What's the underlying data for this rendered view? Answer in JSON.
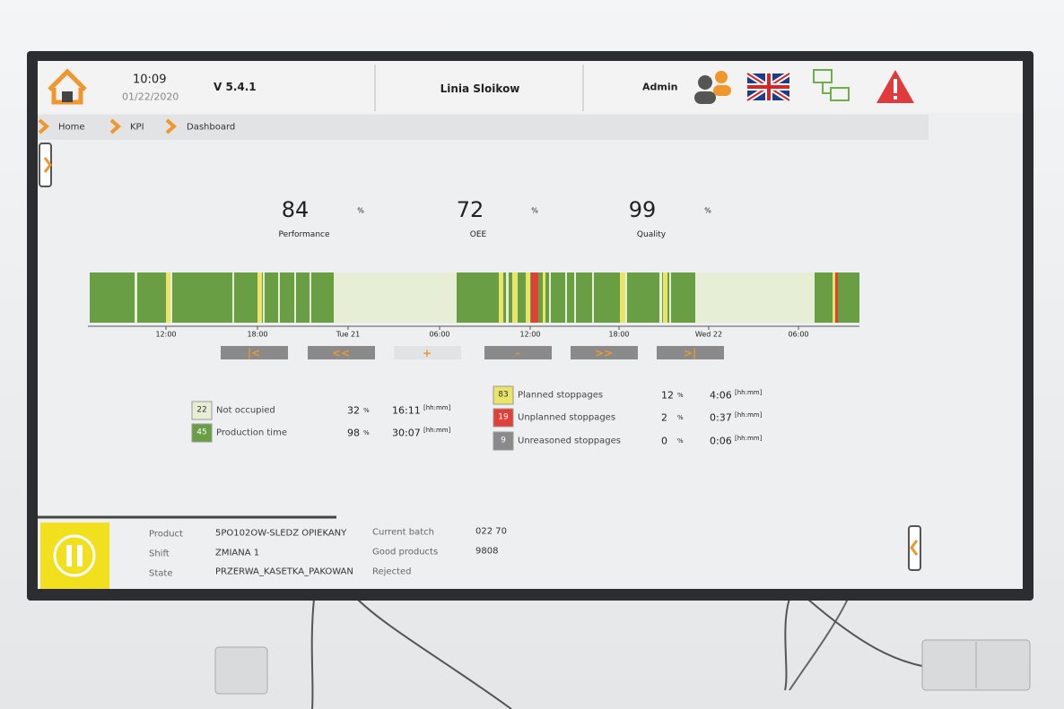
{
  "header": {
    "time": "10:09",
    "date": "01/22/2020",
    "version": "V 5.4.1",
    "line": "Linia Sloikow",
    "user": "Admin"
  },
  "breadcrumbs": [
    "Home",
    "KPI",
    "Dashboard"
  ],
  "kpis": [
    {
      "value": "84",
      "unit": "%",
      "label": "Performance"
    },
    {
      "value": "72",
      "unit": "%",
      "label": "OEE"
    },
    {
      "value": "99",
      "unit": "%",
      "label": "Quality"
    }
  ],
  "timeline_labels": [
    "12:00",
    "18:00",
    "Tue 21",
    "06:00",
    "12:00",
    "18:00",
    "Wed 22",
    "06:00"
  ],
  "legend": [
    {
      "count": "22",
      "label": "Not occupied",
      "percent": "32",
      "percent_unit": "%",
      "duration": "16:11",
      "duration_unit": "[hh:mm]"
    },
    {
      "count": "45",
      "label": "Production time",
      "percent": "98",
      "percent_unit": "%",
      "duration": "30:07",
      "duration_unit": "[hh:mm]"
    },
    {
      "count": "83",
      "label": "Planned stoppages",
      "percent": "12",
      "percent_unit": "%",
      "duration": "4:06",
      "duration_unit": "[hh:mm]"
    },
    {
      "count": "19",
      "label": "Unplanned stoppages",
      "percent": "2",
      "percent_unit": "%",
      "duration": "0:37",
      "duration_unit": "[hh:mm]"
    },
    {
      "count": "9",
      "label": "Unreasoned stoppages",
      "percent": "0",
      "percent_unit": "%",
      "duration": "0:06",
      "duration_unit": "[hh:mm]"
    }
  ],
  "footer": {
    "product_label": "Product",
    "product": "5PO102OW-SLEDZ OPIEKANY",
    "shift_label": "Shift",
    "shift": "ZMIANA 1",
    "state_label": "State",
    "state": "PRZERWA_KASETKA_PAKOWAN",
    "batch_label": "Current batch",
    "batch": "022 70",
    "good_label": "Good products",
    "good": "9808",
    "rejected_label": "Rejected"
  }
}
